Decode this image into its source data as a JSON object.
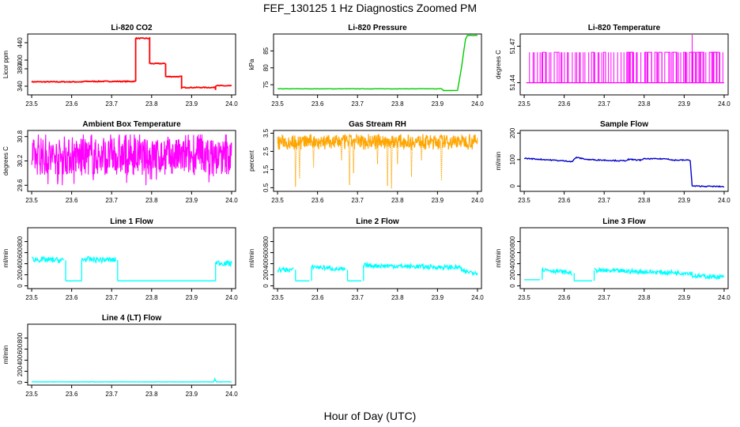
{
  "title": "FEF_130125  1 Hz Diagnostics Zoomed PM",
  "xlabel": "Hour of Day (UTC)",
  "chart_data": [
    {
      "type": "line",
      "title": "Li-820 CO2",
      "ylabel": "Licor ppm",
      "color": "#ff0000",
      "xlim": [
        23.49,
        24.01
      ],
      "ylim": [
        320,
        460
      ],
      "xticks": [
        23.5,
        23.6,
        23.7,
        23.8,
        23.9,
        24.0
      ],
      "xtick_labels": [
        "23.5",
        "23.6",
        "23.7",
        "23.8",
        "23.9",
        "24.0"
      ],
      "yticks": [
        340,
        380,
        400,
        440
      ],
      "ytick_labels": [
        "340",
        "380",
        "400",
        "440"
      ],
      "style": "step",
      "noise": 1,
      "points": [
        [
          23.5,
          350
        ],
        [
          23.63,
          350
        ],
        [
          23.63,
          351
        ],
        [
          23.76,
          351
        ],
        [
          23.76,
          450
        ],
        [
          23.795,
          450
        ],
        [
          23.795,
          392
        ],
        [
          23.835,
          392
        ],
        [
          23.835,
          362
        ],
        [
          23.875,
          362
        ],
        [
          23.875,
          337
        ],
        [
          23.96,
          337
        ],
        [
          23.96,
          332
        ],
        [
          23.96,
          341
        ],
        [
          24.0,
          341
        ]
      ]
    },
    {
      "type": "line",
      "title": "Li-820 Pressure",
      "ylabel": "kPa",
      "color": "#00cc00",
      "xlim": [
        23.49,
        24.01
      ],
      "ylim": [
        72,
        90
      ],
      "xticks": [
        23.5,
        23.6,
        23.7,
        23.8,
        23.9,
        24.0
      ],
      "xtick_labels": [
        "23.5",
        "23.6",
        "23.7",
        "23.8",
        "23.9",
        "24.0"
      ],
      "yticks": [
        75,
        80,
        85
      ],
      "ytick_labels": [
        "75",
        "80",
        "85"
      ],
      "style": "line",
      "noise": 0.05,
      "points": [
        [
          23.5,
          73.8
        ],
        [
          23.91,
          73.8
        ],
        [
          23.915,
          73.3
        ],
        [
          23.95,
          73.3
        ],
        [
          23.96,
          80
        ],
        [
          23.97,
          88.5
        ],
        [
          23.975,
          89.6
        ],
        [
          24.0,
          89.6
        ]
      ]
    },
    {
      "type": "line",
      "title": "Li-820 Temperature",
      "ylabel": "degrees C",
      "color": "#ff00ff",
      "xlim": [
        23.49,
        24.01
      ],
      "ylim": [
        51.43,
        51.48
      ],
      "xticks": [
        23.5,
        23.6,
        23.7,
        23.8,
        23.9,
        24.0
      ],
      "xtick_labels": [
        "23.5",
        "23.6",
        "23.7",
        "23.8",
        "23.9",
        "24.0"
      ],
      "yticks": [
        51.44,
        51.47
      ],
      "ytick_labels": [
        "51.44",
        "51.47"
      ],
      "style": "spikes",
      "baseline": 51.44,
      "high": 51.465,
      "extra_spike": [
        23.92,
        51.48
      ],
      "region": [
        23.505,
        24.0
      ]
    },
    {
      "type": "line",
      "title": "Ambient Box Temperature",
      "ylabel": "degrees C",
      "color": "#ff00ff",
      "xlim": [
        23.49,
        24.01
      ],
      "ylim": [
        29.45,
        30.95
      ],
      "xticks": [
        23.5,
        23.6,
        23.7,
        23.8,
        23.9,
        24.0
      ],
      "xtick_labels": [
        "23.5",
        "23.6",
        "23.7",
        "23.8",
        "23.9",
        "24.0"
      ],
      "yticks": [
        29.6,
        30.2,
        30.8
      ],
      "ytick_labels": [
        "29.6",
        "30.2",
        "30.8"
      ],
      "style": "dense",
      "center": 30.3,
      "spread": 0.45,
      "min": 29.55,
      "max": 30.85
    },
    {
      "type": "line",
      "title": "Gas Stream RH",
      "ylabel": "percent",
      "color": "#ffa500",
      "xlim": [
        23.49,
        24.01
      ],
      "ylim": [
        0.3,
        3.65
      ],
      "xticks": [
        23.5,
        23.6,
        23.7,
        23.8,
        23.9,
        24.0
      ],
      "xtick_labels": [
        "23.5",
        "23.6",
        "23.7",
        "23.8",
        "23.9",
        "24.0"
      ],
      "yticks": [
        0.5,
        1.5,
        2.5,
        3.5
      ],
      "ytick_labels": [
        "0.5",
        "1.5",
        "2.5",
        "3.5"
      ],
      "style": "dense",
      "center": 3.05,
      "spread": 0.35,
      "min": 2.6,
      "max": 3.45,
      "dips": [
        [
          23.545,
          0.55
        ],
        [
          23.555,
          1.0
        ],
        [
          23.59,
          1.6
        ],
        [
          23.66,
          2.0
        ],
        [
          23.68,
          0.65
        ],
        [
          23.69,
          1.3
        ],
        [
          23.75,
          1.8
        ],
        [
          23.775,
          0.6
        ],
        [
          23.785,
          0.45
        ],
        [
          23.8,
          1.8
        ],
        [
          23.835,
          1.1
        ],
        [
          23.86,
          2.0
        ],
        [
          23.91,
          0.9
        ]
      ]
    },
    {
      "type": "line",
      "title": "Sample Flow",
      "ylabel": "ml/min",
      "color": "#0000cc",
      "xlim": [
        23.49,
        24.01
      ],
      "ylim": [
        -20,
        210
      ],
      "xticks": [
        23.5,
        23.6,
        23.7,
        23.8,
        23.9,
        24.0
      ],
      "xtick_labels": [
        "23.5",
        "23.6",
        "23.7",
        "23.8",
        "23.9",
        "24.0"
      ],
      "yticks": [
        0,
        100,
        200
      ],
      "ytick_labels": [
        "0",
        "100",
        "200"
      ],
      "style": "line",
      "noise": 2,
      "points": [
        [
          23.5,
          105
        ],
        [
          23.55,
          100
        ],
        [
          23.62,
          93
        ],
        [
          23.63,
          108
        ],
        [
          23.66,
          100
        ],
        [
          23.7,
          98
        ],
        [
          23.75,
          95
        ],
        [
          23.76,
          100
        ],
        [
          23.77,
          100
        ],
        [
          23.79,
          98
        ],
        [
          23.8,
          103
        ],
        [
          23.86,
          103
        ],
        [
          23.87,
          98
        ],
        [
          23.915,
          98
        ],
        [
          23.92,
          0
        ],
        [
          24.0,
          -2
        ]
      ]
    },
    {
      "type": "line",
      "title": "Line 1 Flow",
      "ylabel": "ml/min",
      "color": "#00ffff",
      "xlim": [
        23.49,
        24.01
      ],
      "ylim": [
        -50,
        1050
      ],
      "xticks": [
        23.5,
        23.6,
        23.7,
        23.8,
        23.9,
        24.0
      ],
      "xtick_labels": [
        "23.5",
        "23.6",
        "23.7",
        "23.8",
        "23.9",
        "24.0"
      ],
      "yticks": [
        0,
        200,
        400,
        600,
        800
      ],
      "ytick_labels": [
        "0",
        "200",
        "400",
        "600",
        "800"
      ],
      "style": "band",
      "spread": 50,
      "segments": [
        [
          23.5,
          23.58,
          480,
          460
        ],
        [
          23.585,
          23.625,
          90,
          90
        ],
        [
          23.625,
          23.71,
          480,
          465
        ],
        [
          23.715,
          23.96,
          90,
          90
        ],
        [
          23.96,
          24.0,
          420,
          400
        ]
      ],
      "flat": [
        23.58,
        23.625,
        23.71,
        23.96
      ]
    },
    {
      "type": "line",
      "title": "Line 2 Flow",
      "ylabel": "ml/min",
      "color": "#00ffff",
      "xlim": [
        23.49,
        24.01
      ],
      "ylim": [
        -50,
        1050
      ],
      "xticks": [
        23.5,
        23.6,
        23.7,
        23.8,
        23.9,
        24.0
      ],
      "xtick_labels": [
        "23.5",
        "23.6",
        "23.7",
        "23.8",
        "23.9",
        "24.0"
      ],
      "yticks": [
        0,
        200,
        400,
        600,
        800
      ],
      "ytick_labels": [
        "0",
        "200",
        "400",
        "600",
        "800"
      ],
      "style": "band",
      "spread": 40,
      "segments": [
        [
          23.5,
          23.54,
          290,
          290
        ],
        [
          23.545,
          23.58,
          90,
          90
        ],
        [
          23.585,
          23.67,
          350,
          290
        ],
        [
          23.675,
          23.71,
          90,
          90
        ],
        [
          23.715,
          23.96,
          370,
          330
        ],
        [
          23.96,
          24.0,
          260,
          240
        ]
      ],
      "flat": []
    },
    {
      "type": "line",
      "title": "Line 3 Flow",
      "ylabel": "ml/min",
      "color": "#00ffff",
      "xlim": [
        23.49,
        24.01
      ],
      "ylim": [
        -50,
        1050
      ],
      "xticks": [
        23.5,
        23.6,
        23.7,
        23.8,
        23.9,
        24.0
      ],
      "xtick_labels": [
        "23.5",
        "23.6",
        "23.7",
        "23.8",
        "23.9",
        "24.0"
      ],
      "yticks": [
        0,
        200,
        400,
        600,
        800
      ],
      "ytick_labels": [
        "0",
        "200",
        "400",
        "600",
        "800"
      ],
      "style": "band",
      "spread": 40,
      "segments": [
        [
          23.5,
          23.54,
          110,
          110
        ],
        [
          23.545,
          23.62,
          300,
          230
        ],
        [
          23.625,
          23.67,
          90,
          90
        ],
        [
          23.675,
          23.92,
          280,
          230
        ],
        [
          23.92,
          24.0,
          180,
          160
        ]
      ],
      "flat": []
    },
    {
      "type": "line",
      "title": "Line 4 (LT) Flow",
      "ylabel": "ml/min",
      "color": "#00ffff",
      "xlim": [
        23.49,
        24.01
      ],
      "ylim": [
        -50,
        1050
      ],
      "xticks": [
        23.5,
        23.6,
        23.7,
        23.8,
        23.9,
        24.0
      ],
      "xtick_labels": [
        "23.5",
        "23.6",
        "23.7",
        "23.8",
        "23.9",
        "24.0"
      ],
      "yticks": [
        0,
        200,
        400,
        600,
        800
      ],
      "ytick_labels": [
        "0",
        "200",
        "400",
        "600",
        "800"
      ],
      "style": "line",
      "noise": 3,
      "points": [
        [
          23.5,
          8
        ],
        [
          23.955,
          8
        ],
        [
          23.958,
          60
        ],
        [
          23.962,
          10
        ],
        [
          24.0,
          8
        ]
      ]
    }
  ]
}
